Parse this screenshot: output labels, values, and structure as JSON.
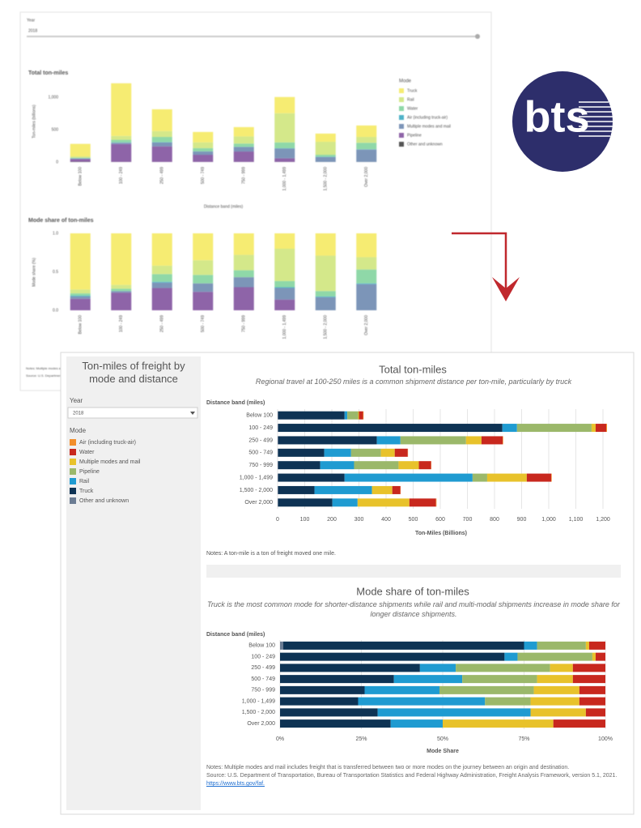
{
  "back_panel": {
    "filter_label": "Year",
    "filter_value": "2018",
    "notes": "Notes: Multiple modes and mail includes freight that is transferred between two or more modes",
    "source": "Source: U.S. Department of Transportation, Bureau of Transportation Statistics"
  },
  "logo": {
    "text": "bts"
  },
  "front_panel": {
    "title": "Ton-miles of freight by mode and distance",
    "filter_label": "Year",
    "filter_value": "2018",
    "notes_top": "Notes: A ton-mile is a ton of freight moved one mile.",
    "notes_bottom": "Notes: Multiple modes and mail includes freight that is transferred between two or more modes on the journey between an origin and destination.",
    "source": "Source: U.S. Department of Transportation, Bureau of Transportation Statistics and Federal Highway Administration, Freight Analysis Framework, version 5.1, 2021.",
    "source_link": "https://www.bts.gov/faf."
  },
  "chart_data": [
    {
      "type": "bar",
      "orientation": "vertical",
      "stacked": true,
      "title": "Total ton-miles",
      "value_axis_label": "Ton-miles (billions)",
      "category_axis_label": "Distance band (miles)",
      "legend_title": "Mode",
      "categories": [
        "Below 100",
        "100 - 249",
        "250 - 499",
        "500 - 749",
        "750 - 999",
        "1,000 - 1,499",
        "1,500 - 2,000",
        "Over 2,000"
      ],
      "ylim": [
        0,
        1250
      ],
      "yticks": [
        0,
        500,
        {
          "value": 1000,
          "label": "1,000"
        }
      ],
      "grid": false,
      "series": [
        {
          "name": "Truck",
          "color": "#f6ec72",
          "values": [
            193,
            812,
            337,
            160,
            144,
            250,
            127,
            177
          ]
        },
        {
          "name": "Rail",
          "color": "#d4e88a",
          "values": [
            20,
            60,
            90,
            90,
            110,
            450,
            200,
            90
          ]
        },
        {
          "name": "Water",
          "color": "#8fd8a8",
          "values": [
            10,
            40,
            80,
            50,
            50,
            90,
            30,
            100
          ]
        },
        {
          "name": "Air (including truck-air)",
          "color": "#4fb3c8",
          "values": [
            2,
            5,
            5,
            2,
            3,
            5,
            5,
            5
          ]
        },
        {
          "name": "Multiple modes and mail",
          "color": "#7c95b8",
          "values": [
            10,
            20,
            60,
            50,
            70,
            150,
            75,
            190
          ]
        },
        {
          "name": "Pipeline",
          "color": "#8e64a8",
          "values": [
            40,
            275,
            240,
            110,
            160,
            55,
            0,
            0
          ]
        },
        {
          "name": "Other and unknown",
          "color": "#555555",
          "values": [
            5,
            3,
            2,
            2,
            2,
            3,
            2,
            2
          ]
        }
      ]
    },
    {
      "type": "bar",
      "orientation": "vertical",
      "stacked": true,
      "title": "Mode share of ton-miles",
      "value_axis_label": "Mode share (%)",
      "categories": [
        "Below 100",
        "100 - 249",
        "250 - 499",
        "500 - 749",
        "750 - 999",
        "1,000 - 1,499",
        "1,500 - 2,000",
        "Over 2,000"
      ],
      "ylim": [
        0,
        1
      ],
      "yticks": [
        {
          "value": 0,
          "label": "0.0"
        },
        {
          "value": 0.5,
          "label": "0.5"
        },
        {
          "value": 1,
          "label": "1.0"
        }
      ],
      "grid": false,
      "series": [
        {
          "values": [
            0.73,
            0.67,
            0.42,
            0.35,
            0.28,
            0.2,
            0.29,
            0.31
          ]
        },
        {
          "values": [
            0.05,
            0.05,
            0.11,
            0.19,
            0.2,
            0.42,
            0.46,
            0.16
          ]
        },
        {
          "values": [
            0.03,
            0.03,
            0.1,
            0.11,
            0.09,
            0.08,
            0.07,
            0.18
          ]
        },
        {
          "values": [
            0.01,
            0,
            0.01,
            0,
            0,
            0.01,
            0.01,
            0.01
          ]
        },
        {
          "values": [
            0.03,
            0.02,
            0.07,
            0.11,
            0.13,
            0.15,
            0.17,
            0.34
          ]
        },
        {
          "values": [
            0.15,
            0.23,
            0.29,
            0.24,
            0.3,
            0.14,
            0,
            0
          ]
        },
        {
          "values": [
            0,
            0,
            0,
            0,
            0,
            0,
            0,
            0
          ]
        }
      ]
    },
    {
      "type": "bar",
      "orientation": "horizontal",
      "stacked": true,
      "title": "Total ton-miles",
      "subtitle": "Regional travel at 100-250 miles is a common shipment distance per ton-mile, particularly by truck",
      "value_axis_label": "Ton-Miles (Billions)",
      "category_axis_label": "Distance band (miles)",
      "legend_title": "Mode",
      "categories": [
        "Below 100",
        "100 - 249",
        "250 - 499",
        "500 - 749",
        "750 - 999",
        "1,000 - 1,499",
        "1,500 - 2,000",
        "Over 2,000"
      ],
      "xlim": [
        0,
        1200
      ],
      "xticks": [
        0,
        100,
        200,
        300,
        400,
        500,
        600,
        700,
        800,
        900,
        {
          "value": 1000,
          "label": "1,000"
        },
        {
          "value": 1100,
          "label": "1,100"
        },
        {
          "value": 1200,
          "label": "1,200"
        }
      ],
      "grid": true,
      "series": [
        {
          "name": "Air (including truck-air)",
          "color": "#f28e2b",
          "values": [
            2,
            3,
            2,
            1,
            1,
            2,
            1,
            2
          ]
        },
        {
          "name": "Water",
          "color": "#c8281e",
          "values": [
            15,
            39,
            78,
            48,
            45,
            90,
            30,
            98
          ]
        },
        {
          "name": "Multiple modes and mail",
          "color": "#e8c22b",
          "values": [
            3,
            15,
            57,
            51,
            75,
            146,
            75,
            191
          ]
        },
        {
          "name": "Pipeline",
          "color": "#9bb86a",
          "values": [
            40,
            275,
            242,
            110,
            164,
            54,
            0,
            0
          ]
        },
        {
          "name": "Rail",
          "color": "#1f9bd1",
          "values": [
            10,
            54,
            87,
            99,
            125,
            472,
            212,
            93
          ]
        },
        {
          "name": "Truck",
          "color": "#0e3354",
          "values": [
            245,
            826,
            364,
            170,
            155,
            245,
            134,
            200
          ]
        },
        {
          "name": "Other and unknown",
          "color": "#6b7c93",
          "values": [
            2,
            3,
            2,
            2,
            2,
            2,
            2,
            2
          ]
        }
      ]
    },
    {
      "type": "bar",
      "orientation": "horizontal",
      "stacked": true,
      "title": "Mode share of ton-miles",
      "subtitle": "Truck is the most common mode for shorter-distance shipments while rail and multi-modal shipments increase in mode share for longer distance shipments.",
      "value_axis_label": "Mode Share",
      "category_axis_label": "Distance band (miles)",
      "categories": [
        "Below 100",
        "100 - 249",
        "250 - 499",
        "500 - 749",
        "750 - 999",
        "1,000 - 1,499",
        "1,500 - 2,000",
        "Over 2,000"
      ],
      "xlim": [
        0,
        100
      ],
      "xticks": [
        {
          "value": 0,
          "label": "0%"
        },
        {
          "value": 25,
          "label": "25%"
        },
        {
          "value": 50,
          "label": "50%"
        },
        {
          "value": 75,
          "label": "75%"
        },
        {
          "value": 100,
          "label": "100%"
        }
      ],
      "grid": true,
      "series": [
        {
          "values": [
            0,
            0,
            0,
            0,
            0,
            0,
            0,
            0
          ]
        },
        {
          "values": [
            5,
            3,
            10,
            10,
            8,
            8,
            6,
            16
          ]
        },
        {
          "values": [
            1,
            1,
            7,
            11,
            14,
            15,
            17,
            34
          ]
        },
        {
          "values": [
            15,
            23,
            29,
            23,
            29,
            14,
            0,
            0
          ]
        },
        {
          "values": [
            4,
            4,
            11,
            21,
            23,
            39,
            47,
            16
          ]
        },
        {
          "values": [
            74,
            69,
            43,
            35,
            26,
            24,
            30,
            34
          ]
        },
        {
          "values": [
            1,
            0,
            0,
            0,
            0,
            0,
            0,
            0
          ]
        }
      ]
    }
  ]
}
